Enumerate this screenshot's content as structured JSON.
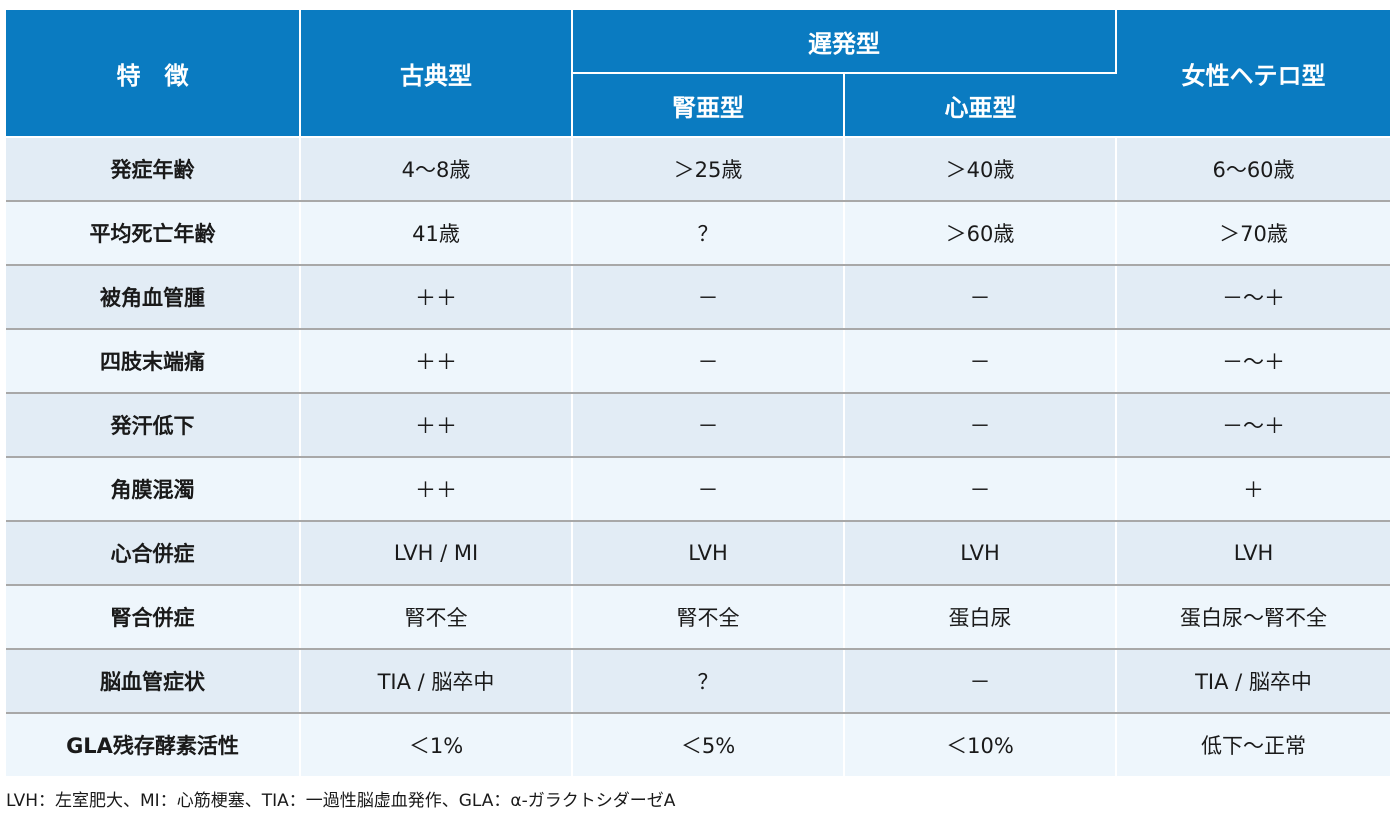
{
  "header": {
    "feature": "特　徴",
    "classic": "古典型",
    "late_onset": "遅発型",
    "renal": "腎亜型",
    "cardiac": "心亜型",
    "female_hetero": "女性ヘテロ型"
  },
  "rows": [
    {
      "feature": "発症年齢",
      "classic": "4～8歳",
      "renal": "＞25歳",
      "cardiac": "＞40歳",
      "female": "6～60歳"
    },
    {
      "feature": "平均死亡年齢",
      "classic": "41歳",
      "renal": "？",
      "cardiac": "＞60歳",
      "female": "＞70歳"
    },
    {
      "feature": "被角血管腫",
      "classic": "＋＋",
      "renal": "－",
      "cardiac": "－",
      "female": "－～＋"
    },
    {
      "feature": "四肢末端痛",
      "classic": "＋＋",
      "renal": "－",
      "cardiac": "－",
      "female": "－～＋"
    },
    {
      "feature": "発汗低下",
      "classic": "＋＋",
      "renal": "－",
      "cardiac": "－",
      "female": "－～＋"
    },
    {
      "feature": "角膜混濁",
      "classic": "＋＋",
      "renal": "－",
      "cardiac": "－",
      "female": "＋"
    },
    {
      "feature": "心合併症",
      "classic": "LVH / MI",
      "renal": "LVH",
      "cardiac": "LVH",
      "female": "LVH"
    },
    {
      "feature": "腎合併症",
      "classic": "腎不全",
      "renal": "腎不全",
      "cardiac": "蛋白尿",
      "female": "蛋白尿～腎不全"
    },
    {
      "feature": "脳血管症状",
      "classic": "TIA / 脳卒中",
      "renal": "？",
      "cardiac": "－",
      "female": "TIA / 脳卒中"
    },
    {
      "feature": "GLA残存酵素活性",
      "classic": "＜1%",
      "renal": "＜5%",
      "cardiac": "＜10%",
      "female": "低下～正常"
    }
  ],
  "footnote": "LVH：左室肥大、MI：心筋梗塞、TIA：一過性脳虚血発作、GLA：α-ガラクトシダーゼA",
  "colors": {
    "header_bg": "#0a7bc1",
    "row_odd": "#e2ecf5",
    "row_even": "#eef6fc",
    "divider": "#a8a8a8"
  }
}
